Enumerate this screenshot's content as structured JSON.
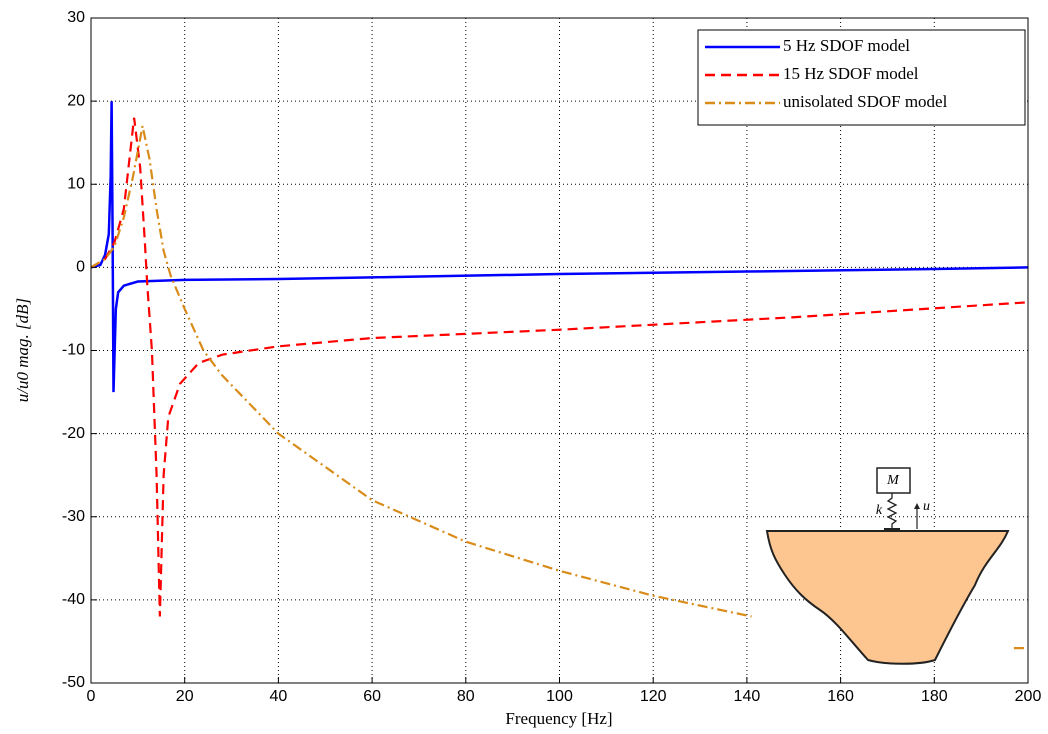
{
  "chart_data": {
    "type": "line",
    "x_label": "Frequency [Hz]",
    "y_label": "u/u0 mag. [dB]",
    "xlim": [
      0,
      200
    ],
    "xticks": [
      0,
      20,
      40,
      60,
      80,
      100,
      120,
      140,
      160,
      180,
      200
    ],
    "ylim": [
      -50,
      30
    ],
    "yticks": [
      -50,
      -40,
      -30,
      -20,
      -10,
      0,
      10,
      20,
      30
    ],
    "grid": true,
    "legend": "upper right",
    "annotations": [
      "M",
      "k",
      "u"
    ],
    "series": [
      {
        "name": "5 Hz SDOF model",
        "color": "#0000ff",
        "style": "solid",
        "x": [
          0,
          2,
          3,
          3.8,
          4.2,
          4.4,
          4.6,
          4.8,
          5.0,
          5.3,
          5.8,
          7,
          10,
          20,
          40,
          60,
          100,
          140,
          180,
          200
        ],
        "values": [
          0,
          0.3,
          1.5,
          4,
          11,
          20,
          5,
          -15,
          -11,
          -5,
          -3,
          -2.2,
          -1.7,
          -1.5,
          -1.4,
          -1.2,
          -0.8,
          -0.5,
          -0.2,
          0
        ]
      },
      {
        "name": "15 Hz SDOF model",
        "color": "#ff0000",
        "style": "dashed",
        "x": [
          0,
          3,
          5,
          7,
          8,
          9.2,
          10.5,
          11.5,
          12,
          13,
          14,
          14.7,
          15.5,
          16.5,
          19,
          23,
          28,
          40,
          60,
          100,
          150,
          200
        ],
        "values": [
          0,
          1,
          3,
          7,
          12,
          18,
          12,
          3,
          -2,
          -10,
          -25,
          -42,
          -25,
          -18,
          -14,
          -11.5,
          -10.5,
          -9.5,
          -8.5,
          -7.5,
          -6,
          -4.2
        ]
      },
      {
        "name": "unisolated SDOF model",
        "color": "#d98c1a",
        "style": "dashdot",
        "x": [
          0,
          3,
          5,
          7,
          9,
          11,
          12.5,
          14,
          15.5,
          17,
          20,
          24,
          28,
          40,
          60,
          80,
          100,
          120,
          141,
          170,
          197,
          200
        ],
        "values": [
          0,
          1,
          2.5,
          6,
          11,
          17,
          13,
          7,
          2,
          -1,
          -5,
          -10,
          -13,
          -20,
          -28,
          -33,
          -36.5,
          -39.5,
          -42,
          null,
          -45.8,
          -45.8
        ]
      }
    ]
  }
}
